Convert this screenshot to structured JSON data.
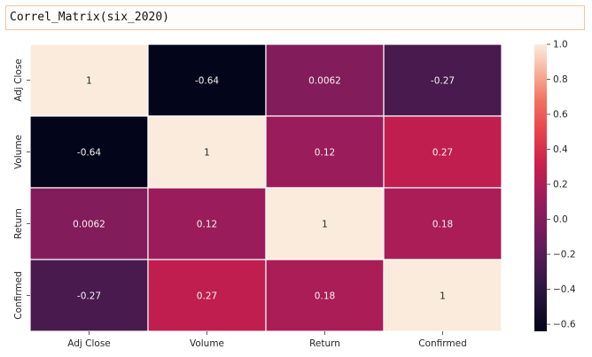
{
  "cell": {
    "code": "Correl_Matrix(six_2020)"
  },
  "chart_data": {
    "type": "heatmap",
    "x_labels": [
      "Adj Close",
      "Volume",
      "Return",
      "Confirmed"
    ],
    "y_labels": [
      "Adj Close",
      "Volume",
      "Return",
      "Confirmed"
    ],
    "values": [
      [
        1,
        -0.64,
        0.0062,
        -0.27
      ],
      [
        -0.64,
        1,
        0.12,
        0.27
      ],
      [
        0.0062,
        0.12,
        1,
        0.18
      ],
      [
        -0.27,
        0.27,
        0.18,
        1
      ]
    ],
    "cell_labels": [
      [
        "1",
        "-0.64",
        "0.0062",
        "-0.27"
      ],
      [
        "-0.64",
        "1",
        "0.12",
        "0.27"
      ],
      [
        "0.0062",
        "0.12",
        "1",
        "0.18"
      ],
      [
        "-0.27",
        "0.27",
        "0.18",
        "1"
      ]
    ],
    "colorbar": {
      "range": [
        -0.64,
        1.0
      ],
      "ticks": [
        -0.6,
        -0.4,
        -0.2,
        0.0,
        0.2,
        0.4,
        0.6,
        0.8,
        1.0
      ],
      "tick_labels": [
        "−0.6",
        "−0.4",
        "−0.2",
        "0.0",
        "0.2",
        "0.4",
        "0.6",
        "0.8",
        "1.0"
      ]
    },
    "colormap": "rocket",
    "title": "",
    "xlabel": "",
    "ylabel": ""
  }
}
